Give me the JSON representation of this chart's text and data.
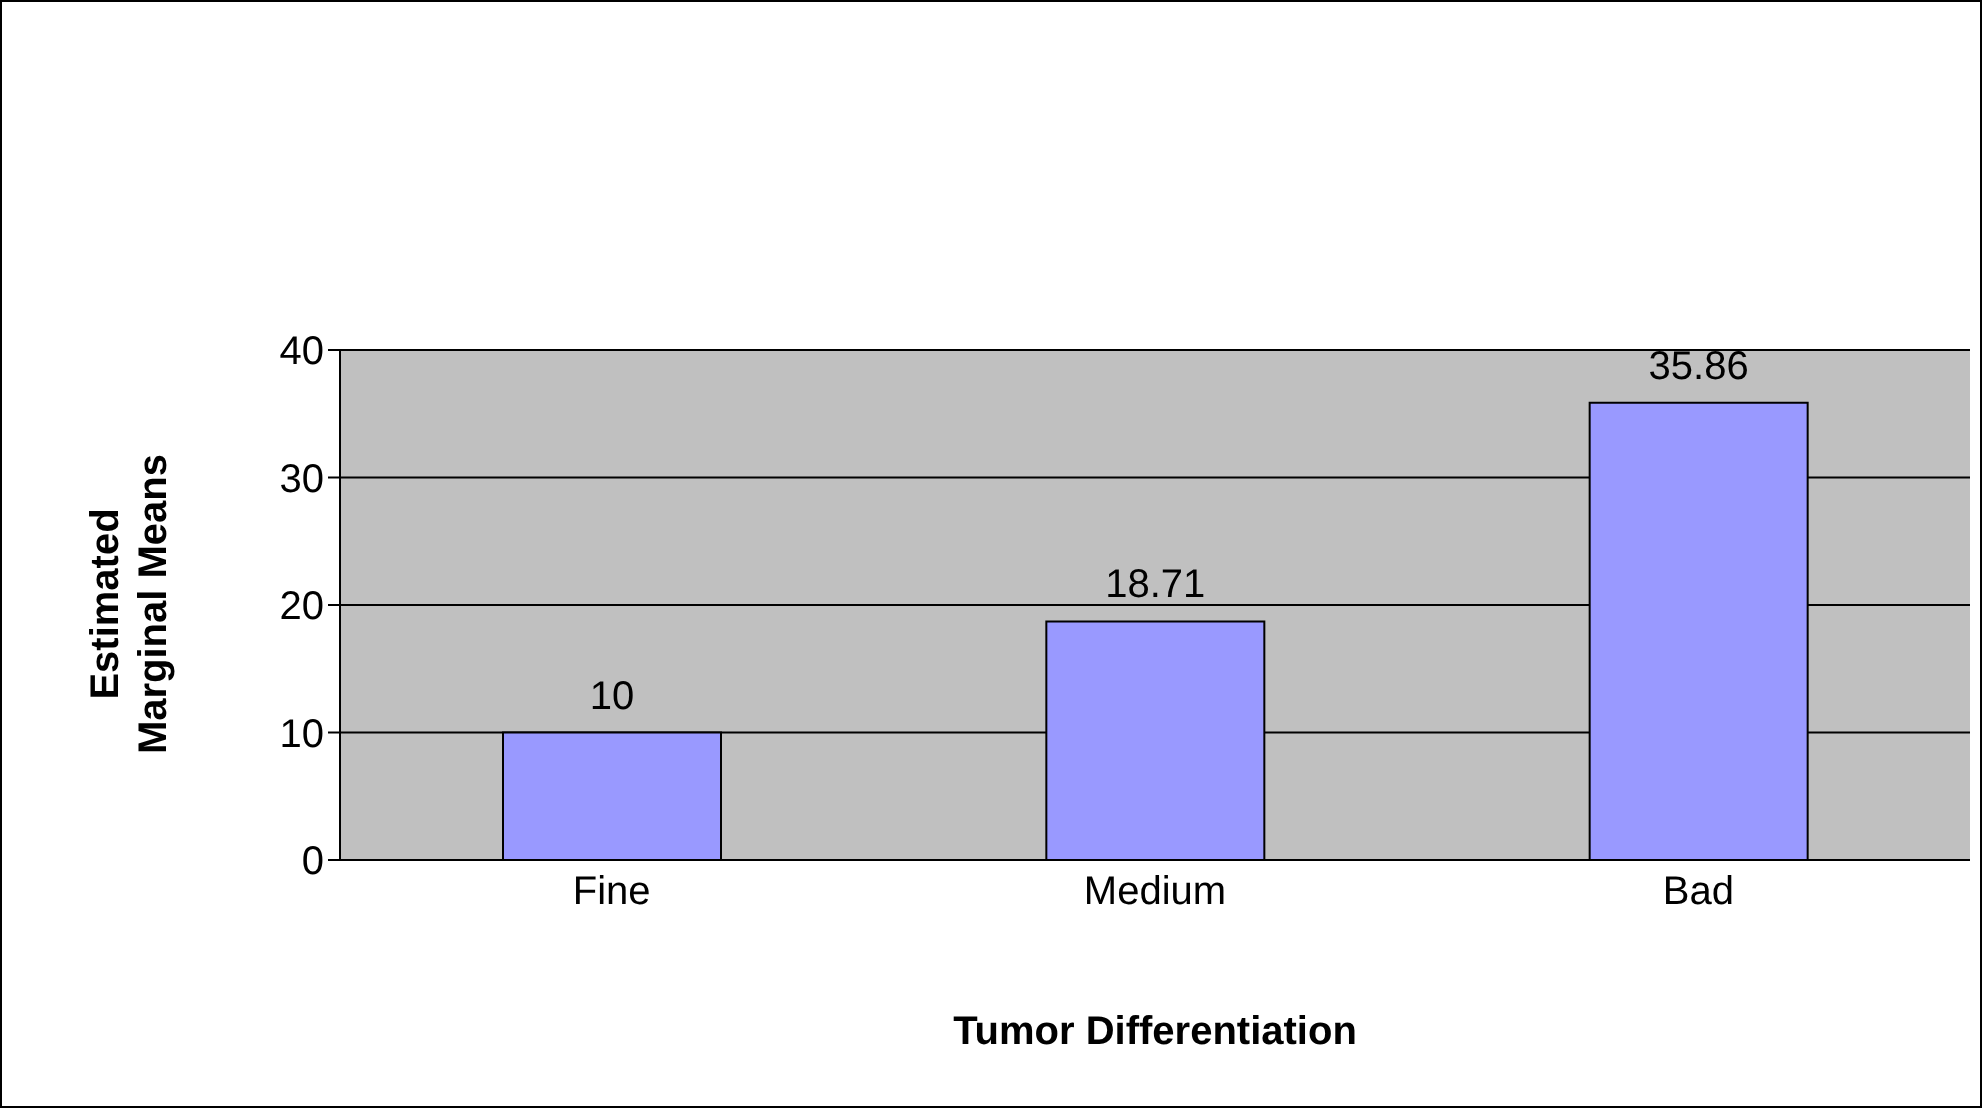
{
  "chart_data": {
    "type": "bar",
    "xlabel": "Tumor Differentiation",
    "ylabel": "Estimated Marginal Means",
    "categories": [
      "Fine",
      "Medium",
      "Bad"
    ],
    "values": [
      10,
      18.71,
      35.86
    ],
    "color": "#9999ff",
    "ylim": [
      0,
      40
    ],
    "yticks": [
      0,
      10,
      20,
      30,
      40
    ],
    "grid": "y",
    "data_labels": true
  }
}
